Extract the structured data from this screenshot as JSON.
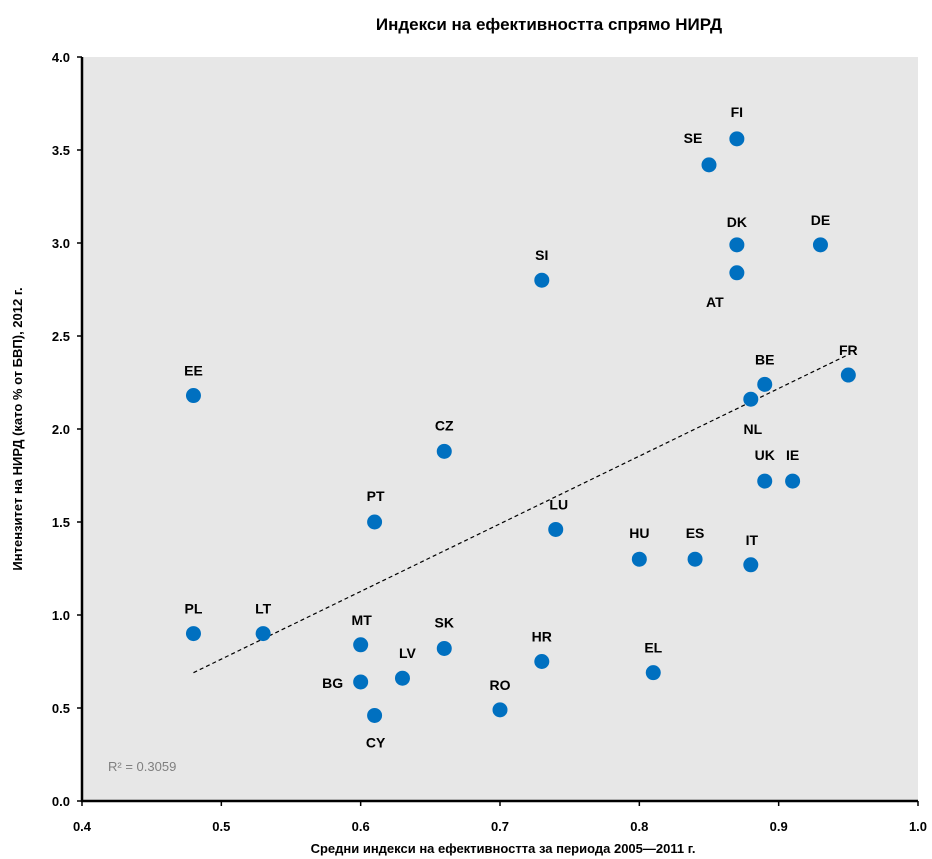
{
  "chart_data": {
    "type": "scatter",
    "title": "Индекси на ефективността спрямо НИРД",
    "xlabel": "Средни индекси на ефективността за периода 2005—2011 г.",
    "ylabel": "Интензитет на НИРД (като % от БВП), 2012 г.",
    "xlim": [
      0.4,
      1.0
    ],
    "ylim": [
      0.0,
      4.0
    ],
    "x_ticks": [
      "0.4",
      "0.5",
      "0.6",
      "0.7",
      "0.8",
      "0.9",
      "1.0"
    ],
    "y_ticks": [
      "0.0",
      "0.5",
      "1.0",
      "1.5",
      "2.0",
      "2.5",
      "3.0",
      "3.5",
      "4.0"
    ],
    "grid": false,
    "marker_color": "#0070C0",
    "plot_background": "#E7E7E7",
    "trendline": {
      "type": "linear",
      "style": "dashed",
      "from": [
        0.48,
        0.69
      ],
      "to": [
        0.95,
        2.4
      ],
      "r2_label": "R² = 0.3059"
    },
    "points": [
      {
        "label": "FI",
        "x": 0.87,
        "y": 3.56
      },
      {
        "label": "SE",
        "x": 0.85,
        "y": 3.42
      },
      {
        "label": "DK",
        "x": 0.87,
        "y": 2.99
      },
      {
        "label": "DE",
        "x": 0.93,
        "y": 2.99
      },
      {
        "label": "AT",
        "x": 0.87,
        "y": 2.84
      },
      {
        "label": "SI",
        "x": 0.73,
        "y": 2.8
      },
      {
        "label": "FR",
        "x": 0.95,
        "y": 2.29
      },
      {
        "label": "BE",
        "x": 0.89,
        "y": 2.24
      },
      {
        "label": "EE",
        "x": 0.48,
        "y": 2.18
      },
      {
        "label": "NL",
        "x": 0.88,
        "y": 2.16
      },
      {
        "label": "CZ",
        "x": 0.66,
        "y": 1.88
      },
      {
        "label": "UK",
        "x": 0.89,
        "y": 1.72
      },
      {
        "label": "IE",
        "x": 0.91,
        "y": 1.72
      },
      {
        "label": "PT",
        "x": 0.61,
        "y": 1.5
      },
      {
        "label": "LU",
        "x": 0.74,
        "y": 1.46
      },
      {
        "label": "HU",
        "x": 0.8,
        "y": 1.3
      },
      {
        "label": "ES",
        "x": 0.84,
        "y": 1.3
      },
      {
        "label": "IT",
        "x": 0.88,
        "y": 1.27
      },
      {
        "label": "PL",
        "x": 0.48,
        "y": 0.9
      },
      {
        "label": "LT",
        "x": 0.53,
        "y": 0.9
      },
      {
        "label": "MT",
        "x": 0.6,
        "y": 0.84
      },
      {
        "label": "SK",
        "x": 0.66,
        "y": 0.82
      },
      {
        "label": "HR",
        "x": 0.73,
        "y": 0.75
      },
      {
        "label": "EL",
        "x": 0.81,
        "y": 0.69
      },
      {
        "label": "LV",
        "x": 0.63,
        "y": 0.66
      },
      {
        "label": "BG",
        "x": 0.6,
        "y": 0.64
      },
      {
        "label": "RO",
        "x": 0.7,
        "y": 0.49
      },
      {
        "label": "CY",
        "x": 0.61,
        "y": 0.46
      }
    ]
  }
}
